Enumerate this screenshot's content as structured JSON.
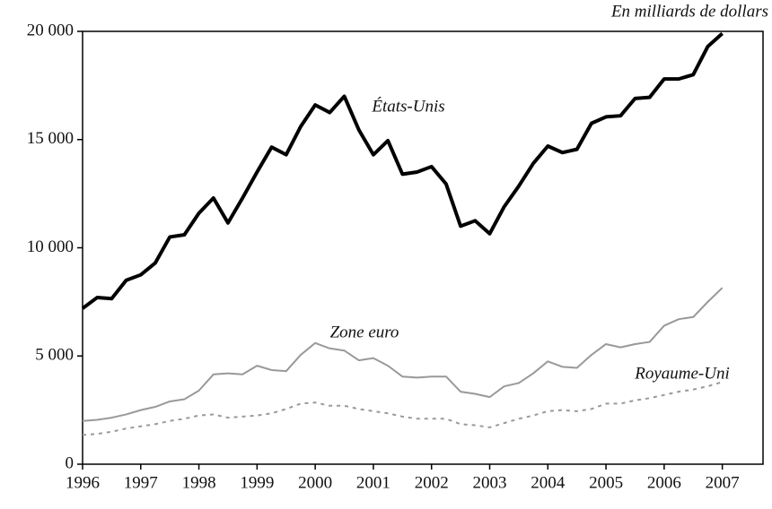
{
  "chart_data": {
    "type": "line",
    "annotation": "En milliards de dollars",
    "x": [
      1996,
      1996.25,
      1996.5,
      1996.75,
      1997,
      1997.25,
      1997.5,
      1997.75,
      1998,
      1998.25,
      1998.5,
      1998.75,
      1999,
      1999.25,
      1999.5,
      1999.75,
      2000,
      2000.25,
      2000.5,
      2000.75,
      2001,
      2001.25,
      2001.5,
      2001.75,
      2002,
      2002.25,
      2002.5,
      2002.75,
      2003,
      2003.25,
      2003.5,
      2003.75,
      2004,
      2004.25,
      2004.5,
      2004.75,
      2005,
      2005.25,
      2005.5,
      2005.75,
      2006,
      2006.25,
      2006.5,
      2006.75,
      2007
    ],
    "series": [
      {
        "name": "États-Unis",
        "color": "#000000",
        "width": 4,
        "dashed": false,
        "values": [
          7200,
          7700,
          7650,
          8500,
          8750,
          9300,
          10500,
          10600,
          11600,
          12300,
          11150,
          12300,
          13500,
          14650,
          14300,
          15600,
          16600,
          16250,
          17000,
          15450,
          14300,
          14950,
          13400,
          13500,
          13750,
          12950,
          11000,
          11250,
          10650,
          11900,
          12850,
          13900,
          14700,
          14400,
          14550,
          15750,
          16050,
          16100,
          16900,
          16950,
          17800,
          17800,
          18000,
          19300,
          19900
        ]
      },
      {
        "name": "Zone euro",
        "color": "#999999",
        "width": 2,
        "dashed": false,
        "values": [
          2000,
          2050,
          2150,
          2300,
          2500,
          2650,
          2900,
          3000,
          3400,
          4150,
          4200,
          4150,
          4550,
          4350,
          4300,
          5050,
          5600,
          5350,
          5250,
          4800,
          4900,
          4550,
          4050,
          4000,
          4050,
          4050,
          3350,
          3250,
          3100,
          3600,
          3750,
          4200,
          4750,
          4500,
          4450,
          5050,
          5550,
          5400,
          5550,
          5650,
          6400,
          6700,
          6800,
          7500,
          8150
        ]
      },
      {
        "name": "Royaume-Uni",
        "color": "#999999",
        "width": 2,
        "dashed": true,
        "values": [
          1350,
          1400,
          1500,
          1650,
          1750,
          1850,
          2000,
          2100,
          2250,
          2300,
          2150,
          2200,
          2250,
          2350,
          2550,
          2800,
          2850,
          2700,
          2700,
          2550,
          2450,
          2350,
          2200,
          2100,
          2100,
          2100,
          1850,
          1800,
          1700,
          1900,
          2100,
          2250,
          2450,
          2500,
          2450,
          2550,
          2800,
          2800,
          2950,
          3050,
          3200,
          3350,
          3450,
          3600,
          3800
        ]
      }
    ],
    "xlim": [
      1996,
      2007.7
    ],
    "xticks": [
      1996,
      1997,
      1998,
      1999,
      2000,
      2001,
      2002,
      2003,
      2004,
      2005,
      2006,
      2007
    ],
    "ylim": [
      0,
      20000
    ],
    "yticks": [
      0,
      {
        "value": 5000,
        "label": "5 000"
      },
      {
        "value": 10000,
        "label": "10 000"
      },
      {
        "value": 15000,
        "label": "15 000"
      },
      {
        "value": 20000,
        "label": "20 000"
      }
    ],
    "grid": false
  }
}
